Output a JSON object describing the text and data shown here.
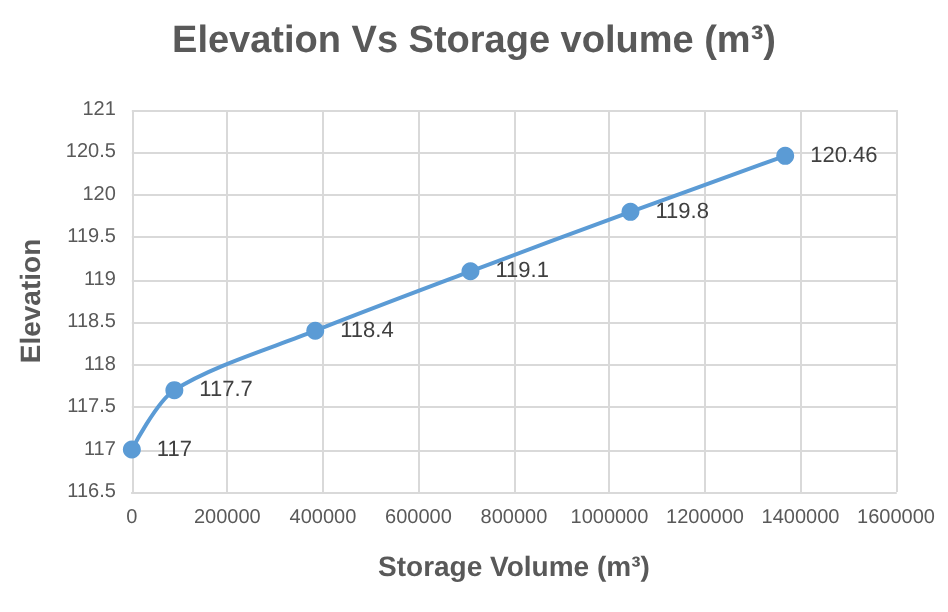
{
  "chart_data": {
    "type": "line",
    "title": "Elevation Vs Storage volume (m³)",
    "xlabel": "Storage Volume (m³)",
    "ylabel": "Elevation",
    "x": [
      0,
      89000,
      384000,
      709000,
      1044000,
      1368000
    ],
    "series": [
      {
        "color": "#5b9bd5",
        "values": [
          117,
          117.7,
          118.4,
          119.1,
          119.8,
          120.46
        ]
      }
    ],
    "xlim": [
      0,
      1600000
    ],
    "xticks": [
      0,
      200000,
      400000,
      600000,
      800000,
      1000000,
      1200000,
      1400000,
      1600000
    ],
    "ylim": [
      116.5,
      121
    ],
    "yticks": [
      116.5,
      117,
      117.5,
      118,
      118.5,
      119,
      119.5,
      120,
      120.5,
      121
    ],
    "grid": true,
    "marker": "circle",
    "line_style": "solid",
    "data_labels": true
  }
}
